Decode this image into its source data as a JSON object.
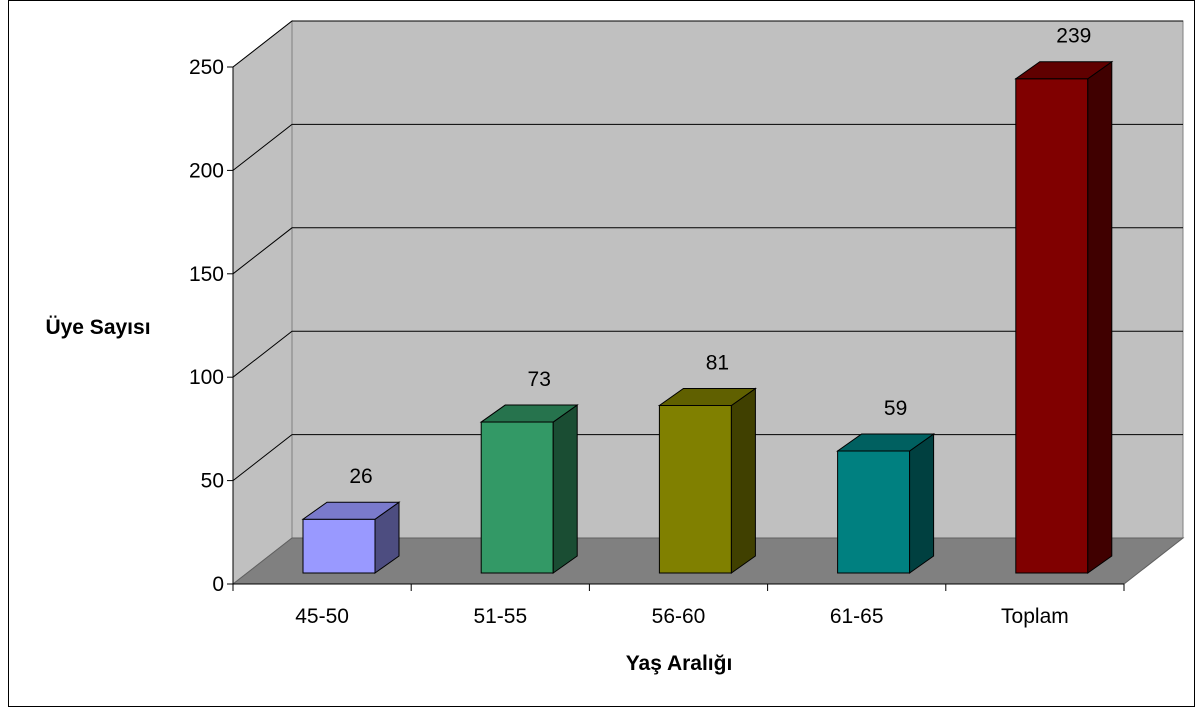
{
  "chart_data": {
    "type": "bar",
    "categories": [
      "45-50",
      "51-55",
      "56-60",
      "61-65",
      "Toplam"
    ],
    "values": [
      26,
      73,
      81,
      59,
      239
    ],
    "data_labels": [
      "26",
      "73",
      "81",
      "59",
      "239"
    ],
    "xlabel": "Yaş Aralığı",
    "ylabel": "Üye Sayısı",
    "ylim": [
      0,
      250
    ],
    "yticks": [
      0,
      50,
      100,
      150,
      200,
      250
    ],
    "ytick_labels": [
      "0",
      "50",
      "100",
      "150",
      "200",
      "250"
    ],
    "grid": true,
    "legend": "none",
    "three_d": true,
    "colors": {
      "wall": "#c0c0c0",
      "floor": "#808080",
      "gridline": "#000000",
      "bars": [
        "#9999ff",
        "#339966",
        "#808000",
        "#008080",
        "#800000"
      ]
    }
  }
}
